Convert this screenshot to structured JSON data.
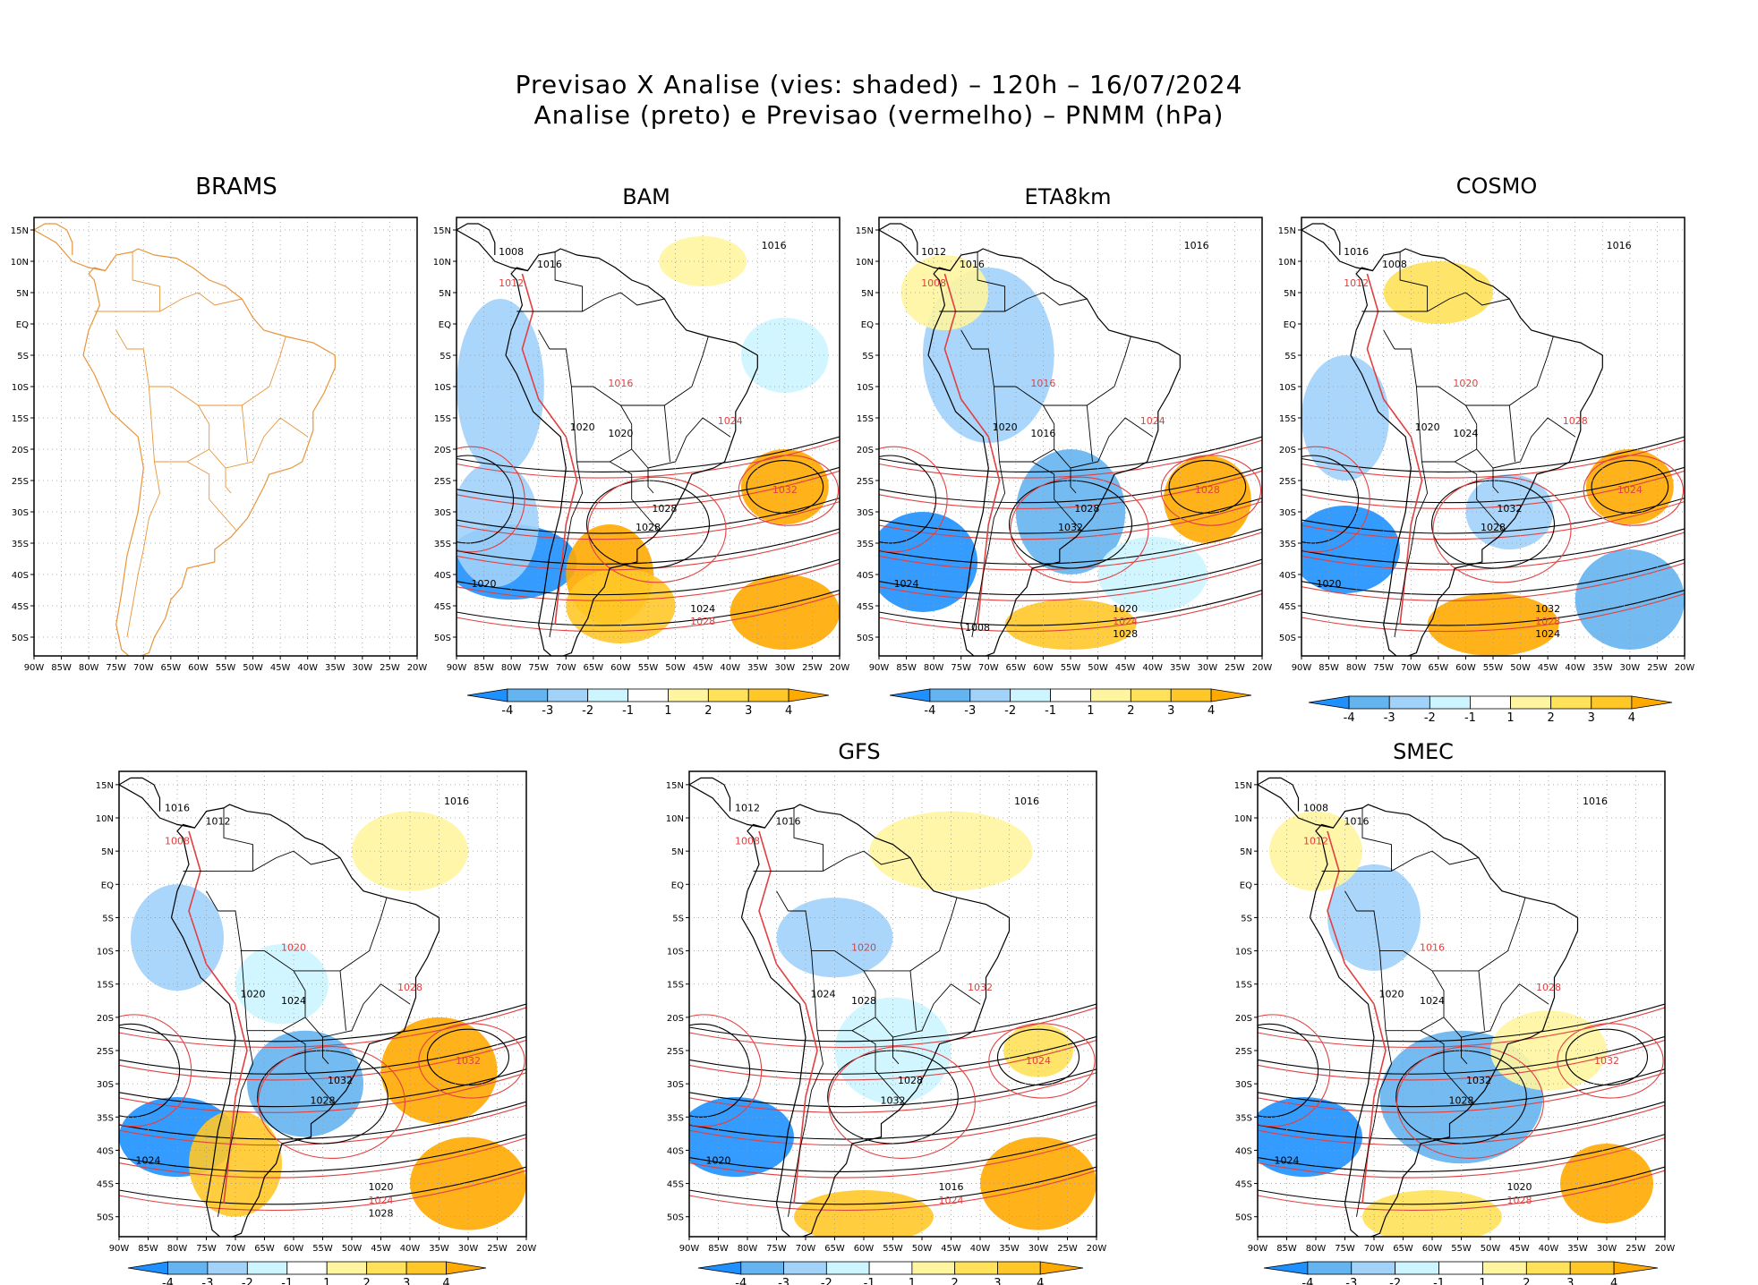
{
  "header": {
    "line1": "Previsao X Analise (vies: shaded) – 120h – 16/07/2024",
    "line2": "Analise (preto) e Previsao (vermelho) – PNMM (hPa)"
  },
  "axes": {
    "lat_labels": [
      "15N",
      "10N",
      "5N",
      "EQ",
      "5S",
      "10S",
      "15S",
      "20S",
      "25S",
      "30S",
      "35S",
      "40S",
      "45S",
      "50S"
    ],
    "lon_labels": [
      "90W",
      "85W",
      "80W",
      "75W",
      "70W",
      "65W",
      "60W",
      "55W",
      "50W",
      "45W",
      "40W",
      "35W",
      "30W",
      "25W",
      "20W"
    ]
  },
  "colorbar": {
    "labels": [
      "-4",
      "-3",
      "-2",
      "-1",
      "1",
      "2",
      "3",
      "4"
    ],
    "colors": [
      "#1e90ff",
      "#64b4f0",
      "#a0d2fa",
      "#cdf5ff",
      "#ffffff",
      "#fff5a0",
      "#ffe15a",
      "#ffc828",
      "#ffaa00"
    ]
  },
  "panels": [
    {
      "id": "brams",
      "title": "BRAMS",
      "has_colorbar": false
    },
    {
      "id": "bam",
      "title": "BAM",
      "has_colorbar": true,
      "contours": [
        "1008",
        "1012",
        "1016",
        "1016",
        "1016",
        "1020",
        "1020",
        "1024",
        "1028",
        "1028",
        "1032",
        "1020",
        "1024",
        "1028"
      ]
    },
    {
      "id": "eta",
      "title": "ETA8km",
      "has_colorbar": true,
      "contours": [
        "1012",
        "1008",
        "1016",
        "1016",
        "1016",
        "1020",
        "1016",
        "1024",
        "1028",
        "1032",
        "1028",
        "1024",
        "1020",
        "1024",
        "1028",
        "1008"
      ]
    },
    {
      "id": "cosmo",
      "title": "COSMO",
      "has_colorbar": true,
      "contours": [
        "1016",
        "1012",
        "1008",
        "1016",
        "1020",
        "1020",
        "1024",
        "1028",
        "1032",
        "1028",
        "1024",
        "1020",
        "1032",
        "1028",
        "1024"
      ]
    },
    {
      "id": "p5",
      "title": "",
      "has_colorbar": true,
      "contours": [
        "1016",
        "1008",
        "1012",
        "1016",
        "1020",
        "1020",
        "1024",
        "1028",
        "1032",
        "1028",
        "1032",
        "1024",
        "1020",
        "1024",
        "1028"
      ]
    },
    {
      "id": "gfs",
      "title": "GFS",
      "has_colorbar": true,
      "contours": [
        "1012",
        "1008",
        "1016",
        "1016",
        "1020",
        "1024",
        "1028",
        "1032",
        "1028",
        "1032",
        "1024",
        "1020",
        "1016",
        "1024"
      ]
    },
    {
      "id": "smec",
      "title": "SMEC",
      "has_colorbar": true,
      "contours": [
        "1008",
        "1012",
        "1016",
        "1016",
        "1016",
        "1020",
        "1024",
        "1028",
        "1032",
        "1028",
        "1032",
        "1024",
        "1020",
        "1028"
      ]
    }
  ]
}
